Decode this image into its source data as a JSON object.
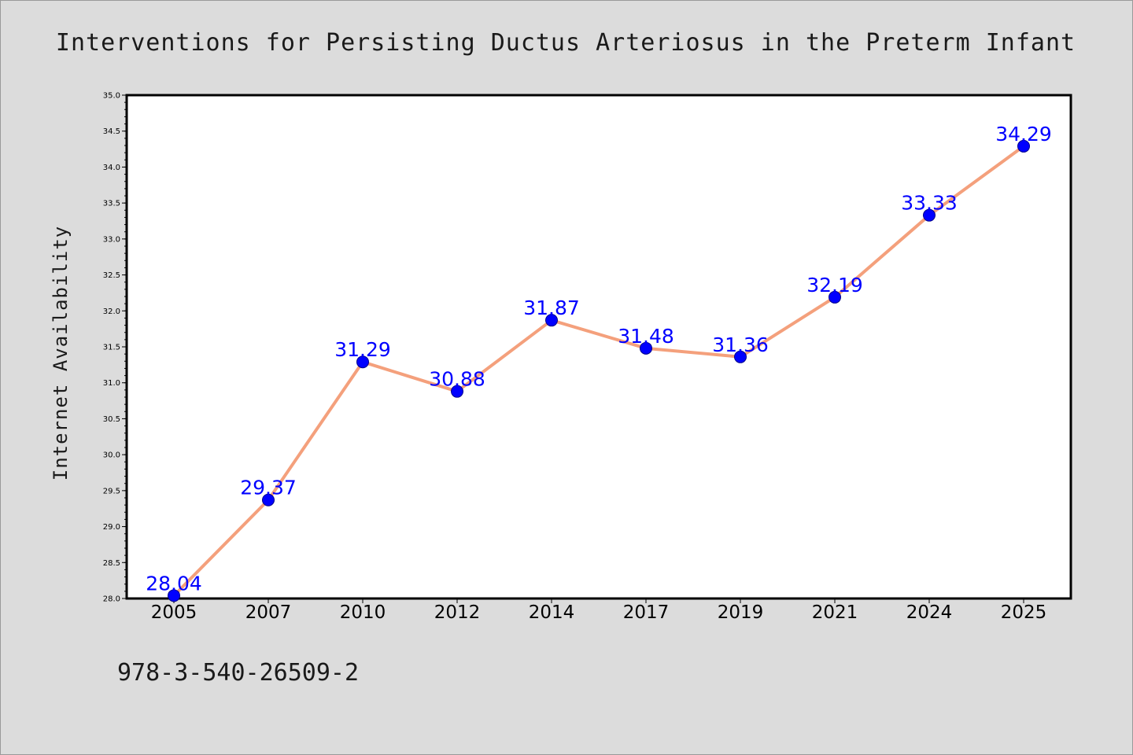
{
  "chart_data": {
    "type": "line",
    "title": "Interventions for Persisting Ductus Arteriosus in the Preterm Infant",
    "xlabel": "",
    "ylabel": "Internet Availability",
    "categories": [
      "2005",
      "2007",
      "2010",
      "2012",
      "2014",
      "2017",
      "2019",
      "2021",
      "2024",
      "2025"
    ],
    "values": [
      28.04,
      29.37,
      31.29,
      30.88,
      31.87,
      31.48,
      31.36,
      32.19,
      33.33,
      34.29
    ],
    "data_labels": [
      "28.04",
      "29.37",
      "31.29",
      "30.88",
      "31.87",
      "31.48",
      "31.36",
      "32.19",
      "33.33",
      "34.29"
    ],
    "ylim": [
      28.0,
      35.0
    ],
    "yticks": [
      "28.0",
      "28.5",
      "29.0",
      "29.5",
      "30.0",
      "30.5",
      "31.0",
      "31.5",
      "32.0",
      "32.5",
      "33.0",
      "33.5",
      "34.0",
      "34.5",
      "35.0"
    ],
    "grid": false,
    "line_color": "#f4a07c",
    "marker_color": "#0000ff",
    "label_color": "#0000ff"
  },
  "footer": {
    "text": "978-3-540-26509-2"
  }
}
